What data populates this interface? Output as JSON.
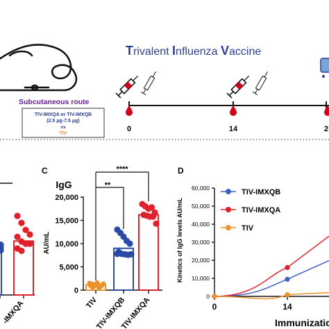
{
  "schematic": {
    "title_parts": [
      {
        "cap": "T",
        "rest": "rivalent "
      },
      {
        "cap": "I",
        "rest": "nfluenza "
      },
      {
        "cap": "V",
        "rest": "accine"
      }
    ],
    "route_label": "Subcutaneous route",
    "groups_line1": "TIV-IMXQA or TIV-IMXQB",
    "groups_line2": "(2.5 μg-7.5 μg)",
    "vs_label": "vs",
    "control_label": "TIV",
    "timepoints": [
      "0",
      "14",
      "2"
    ],
    "colors": {
      "title": "#2b3f8f",
      "route": "#6a1b9a",
      "groups": "#2b3f8f",
      "control": "#e8922a",
      "blood": "#d0021b"
    }
  },
  "panel_c_label": "C",
  "panel_d_label": "D",
  "panel_b_fragment": {
    "labels": [
      "-IMXQA"
    ]
  },
  "chart_data": [
    {
      "type": "scatter",
      "title": "IgG",
      "ylabel": "AU/mL",
      "ylim": [
        0,
        20000
      ],
      "yticks": [
        "0",
        "5,000",
        "10,000",
        "15,000",
        "20,000"
      ],
      "categories": [
        "TIV",
        "TIV-IMXQB",
        "TIV-IMXQA"
      ],
      "bar_means": [
        1100,
        9000,
        16200
      ],
      "colors": [
        "#e8922a",
        "#2b4aa6",
        "#e0202a"
      ],
      "points": [
        [
          1500,
          1300,
          1200,
          1100,
          1000,
          900,
          800,
          1600,
          700,
          1400,
          1200,
          600,
          1000,
          500
        ],
        [
          13000,
          12300,
          11500,
          10600,
          10000,
          8200,
          7800,
          7700,
          7600,
          7700,
          7800
        ],
        [
          18500,
          18000,
          17500,
          17800,
          16700,
          16200,
          16000,
          15800,
          15800,
          14300
        ]
      ],
      "significance": [
        "**",
        "****"
      ]
    },
    {
      "type": "line",
      "ylabel": "Kinetics of IgG levels AU/mL",
      "xlabel": "Immunization",
      "ylim": [
        0,
        60000
      ],
      "yticks": [
        "0",
        "10,000",
        "20,000",
        "30,000",
        "40,000",
        "50,000",
        "60,000"
      ],
      "xticks": [
        "0",
        "14"
      ],
      "series": [
        {
          "name": "TIV-IMXQB",
          "color": "#3f5fc4",
          "x": [
            0,
            14
          ],
          "y": [
            0,
            9500
          ]
        },
        {
          "name": "TIV-IMXQA",
          "color": "#e0202a",
          "x": [
            0,
            14
          ],
          "y": [
            0,
            16000
          ]
        },
        {
          "name": "TIV",
          "color": "#f0932b",
          "x": [
            0,
            14
          ],
          "y": [
            0,
            1000
          ]
        }
      ]
    },
    {
      "type": "scatter",
      "categories": [
        "-IMXQA"
      ],
      "points": [
        [
          17000,
          15500,
          14000,
          13000,
          12500,
          11500,
          11000,
          11000,
          10000,
          9500
        ]
      ],
      "colors": [
        "#e0202a"
      ]
    }
  ]
}
